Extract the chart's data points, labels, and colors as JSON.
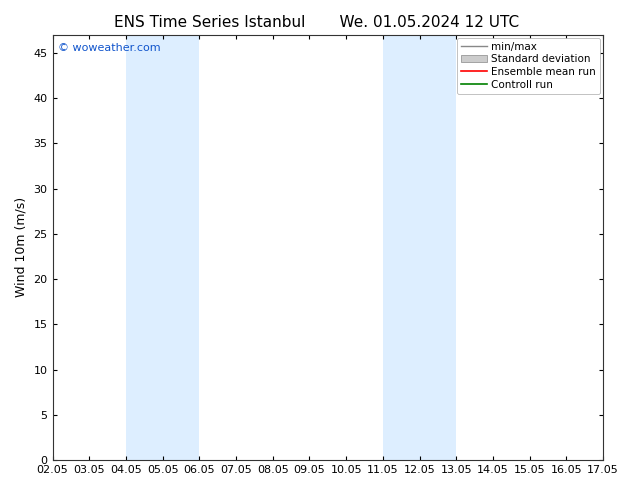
{
  "title_left": "ENS Time Series Istanbul",
  "title_right": "We. 01.05.2024 12 UTC",
  "ylabel": "Wind 10m (m/s)",
  "background_color": "#ffffff",
  "plot_bg_color": "#ffffff",
  "ylim": [
    0,
    47
  ],
  "yticks": [
    0,
    5,
    10,
    15,
    20,
    25,
    30,
    35,
    40,
    45
  ],
  "xtick_labels": [
    "02.05",
    "03.05",
    "04.05",
    "05.05",
    "06.05",
    "07.05",
    "08.05",
    "09.05",
    "10.05",
    "11.05",
    "12.05",
    "13.05",
    "14.05",
    "15.05",
    "16.05",
    "17.05"
  ],
  "shaded_bands": [
    {
      "xmin": 4,
      "xmax": 6,
      "color": "#ddeeff"
    },
    {
      "xmin": 11,
      "xmax": 13,
      "color": "#ddeeff"
    }
  ],
  "watermark_text": "© woweather.com",
  "watermark_color": "#1155cc",
  "legend_labels": [
    "min/max",
    "Standard deviation",
    "Ensemble mean run",
    "Controll run"
  ],
  "title_fontsize": 11,
  "tick_fontsize": 8,
  "ylabel_fontsize": 9,
  "legend_fontsize": 7.5
}
